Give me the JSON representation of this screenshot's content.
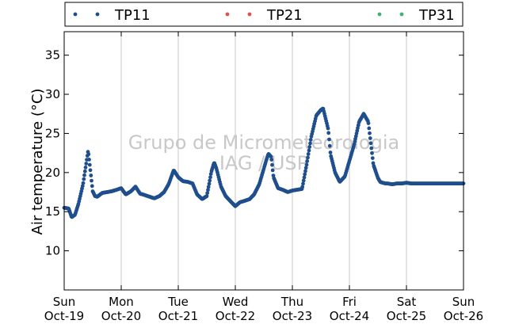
{
  "chart_data": {
    "type": "scatter",
    "ylabel": "Air temperature (°C)",
    "ylim": [
      5,
      38
    ],
    "xlim": [
      "2014-10-19T00:00",
      "2014-10-26T00:00"
    ],
    "yticks": [
      10,
      15,
      20,
      25,
      30,
      35
    ],
    "xticks": [
      {
        "day": "Sun",
        "date": "Oct-19"
      },
      {
        "day": "Mon",
        "date": "Oct-20"
      },
      {
        "day": "Tue",
        "date": "Oct-21"
      },
      {
        "day": "Wed",
        "date": "Oct-22"
      },
      {
        "day": "Thu",
        "date": "Oct-23"
      },
      {
        "day": "Fri",
        "date": "Oct-24"
      },
      {
        "day": "Sat",
        "date": "Oct-25"
      },
      {
        "day": "Sun",
        "date": "Oct-26"
      }
    ],
    "grid": {
      "vertical": true,
      "horizontal": false
    },
    "legend_position": "top",
    "watermark": [
      "Grupo de Micrometeorologia",
      "IAG / USP"
    ],
    "series": [
      {
        "name": "TP11",
        "color": "#1f4e8c",
        "x_days": [
          0.0,
          0.08,
          0.13,
          0.19,
          0.25,
          0.33,
          0.42,
          0.5,
          0.54,
          0.58,
          0.63,
          0.67,
          0.75,
          0.83,
          0.92,
          1.0,
          1.08,
          1.17,
          1.25,
          1.33,
          1.38,
          1.42,
          1.46,
          1.5,
          1.58,
          1.67,
          1.75,
          1.83,
          1.92,
          2.0,
          2.08,
          2.17,
          2.25,
          2.33,
          2.42,
          2.5,
          2.54,
          2.58,
          2.63,
          2.67,
          2.75,
          2.83,
          2.92,
          3.0,
          3.08,
          3.17,
          3.25,
          3.33,
          3.42,
          3.5,
          3.54,
          3.58,
          3.63,
          3.67,
          3.75,
          3.83,
          3.92,
          4.0,
          4.08,
          4.17,
          4.25,
          4.33,
          4.42,
          4.5,
          4.54,
          4.58,
          4.63,
          4.67,
          4.75,
          4.83,
          4.92,
          5.0,
          5.08,
          5.17,
          5.25,
          5.33,
          5.42,
          5.5,
          5.54,
          5.58,
          5.63,
          5.67,
          5.75,
          5.83,
          5.92,
          6.0,
          6.08,
          6.17,
          6.25,
          6.33,
          6.42,
          6.5,
          6.54,
          6.58,
          6.63,
          6.67,
          6.75,
          6.83,
          6.92,
          7.0
        ],
        "values": [
          15.5,
          15.4,
          14.3,
          14.6,
          16.0,
          18.5,
          22.8,
          17.6,
          17.0,
          16.9,
          17.2,
          17.4,
          17.5,
          17.6,
          17.8,
          18.0,
          17.2,
          17.6,
          18.2,
          17.3,
          17.2,
          17.1,
          17.0,
          16.9,
          16.7,
          17.0,
          17.5,
          18.5,
          20.3,
          19.4,
          18.9,
          18.8,
          18.6,
          17.2,
          16.6,
          17.0,
          18.5,
          20.1,
          21.3,
          20.5,
          18.2,
          17.0,
          16.3,
          15.7,
          16.2,
          16.4,
          16.6,
          17.2,
          18.5,
          20.5,
          21.5,
          22.4,
          22.0,
          19.4,
          18.0,
          17.8,
          17.5,
          17.7,
          17.8,
          17.9,
          21.0,
          24.5,
          27.3,
          28.0,
          28.2,
          27.0,
          25.5,
          22.3,
          20.0,
          18.8,
          19.5,
          21.5,
          23.5,
          26.5,
          27.5,
          26.5,
          21.0,
          19.3,
          18.8,
          18.7,
          18.6,
          18.6,
          18.5,
          18.6,
          18.6,
          18.7,
          18.6,
          18.6,
          18.6,
          18.6,
          18.6,
          18.6,
          18.6,
          18.6,
          18.6,
          18.6,
          18.6,
          18.6,
          18.6,
          18.6
        ]
      },
      {
        "name": "TP21",
        "color": "#d9534f",
        "x_days": [],
        "values": []
      },
      {
        "name": "TP31",
        "color": "#3cb371",
        "x_days": [],
        "values": []
      }
    ]
  }
}
